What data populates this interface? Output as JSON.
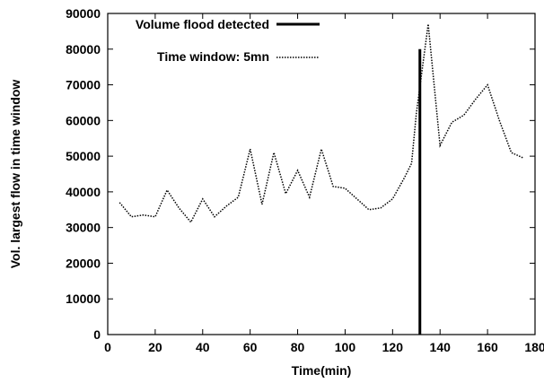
{
  "chart_data": {
    "type": "line",
    "xlabel": "Time(min)",
    "ylabel": "Vol. largest flow in time window",
    "xlim": [
      0,
      180
    ],
    "ylim": [
      0,
      90000
    ],
    "xticks": [
      0,
      20,
      40,
      60,
      80,
      100,
      120,
      140,
      160,
      180
    ],
    "yticks": [
      0,
      10000,
      20000,
      30000,
      40000,
      50000,
      60000,
      70000,
      80000,
      90000
    ],
    "grid": false,
    "legend_position": "top-left",
    "series": [
      {
        "name": "Volume flood detected",
        "style": "solid",
        "color": "#000000",
        "x": [
          131.5,
          131.5
        ],
        "y": [
          0,
          80000
        ]
      },
      {
        "name": "Time window: 5mn",
        "style": "dotted",
        "color": "#000000",
        "x": [
          5,
          10,
          15,
          20,
          25,
          30,
          35,
          40,
          45,
          50,
          55,
          60,
          65,
          70,
          75,
          80,
          85,
          90,
          95,
          100,
          105,
          110,
          115,
          120,
          125,
          128,
          130,
          132,
          135,
          140,
          145,
          150,
          155,
          160,
          165,
          170,
          175
        ],
        "y": [
          37000,
          33000,
          33500,
          33000,
          40500,
          35500,
          31500,
          38000,
          33000,
          36000,
          38500,
          52000,
          36500,
          51000,
          39500,
          46000,
          38500,
          52000,
          41500,
          41000,
          38000,
          35000,
          35500,
          38000,
          44000,
          48000,
          62000,
          72000,
          87000,
          53000,
          59500,
          61500,
          66000,
          70000,
          60000,
          51000,
          49500
        ]
      }
    ]
  }
}
